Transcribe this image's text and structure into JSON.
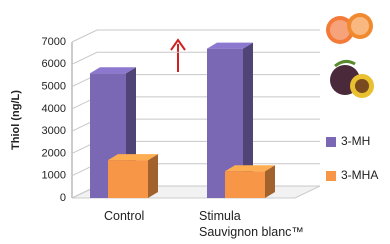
{
  "chart_data": {
    "type": "bar3d",
    "y_label": "Thiol (ng/L)",
    "categories": [
      "Control",
      "Stimula\nSauvignon blanc™"
    ],
    "series": [
      {
        "name": "3-MH",
        "color": "#7b68b5",
        "values": [
          5600,
          6700
        ]
      },
      {
        "name": "3-MHA",
        "color": "#f79646",
        "values": [
          1700,
          1200
        ]
      }
    ],
    "ylim": [
      0,
      7000
    ],
    "yticks": [
      0,
      1000,
      2000,
      3000,
      4000,
      5000,
      6000,
      7000
    ],
    "grid": true
  }
}
